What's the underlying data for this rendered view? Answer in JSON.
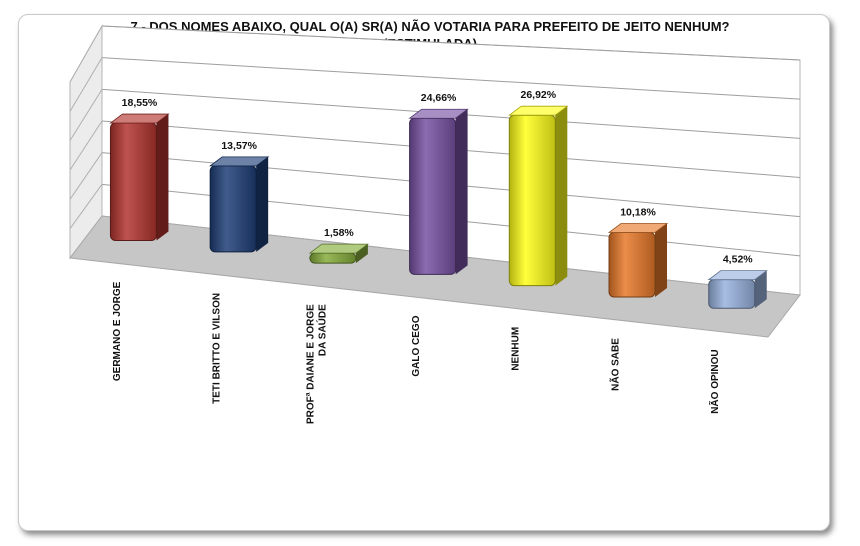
{
  "chart_data": {
    "type": "bar",
    "title_line1": "7 -  DOS NOMES ABAIXO, QUAL O(A) SR(A) NÃO VOTARIA PARA PREFEITO DE JEITO NENHUM?",
    "title_line2": "(ESTIMULADA)",
    "categories": [
      [
        "GERMANO E JORGE"
      ],
      [
        "TETI BRITTO E VILSON"
      ],
      [
        "PROFª DAIANE E JORGE",
        "DA SAÚDE"
      ],
      [
        "GALO CEGO"
      ],
      [
        "NENHUM"
      ],
      [
        "NÃO SABE"
      ],
      [
        "NÃO OPINOU"
      ]
    ],
    "values": [
      18.55,
      13.57,
      1.58,
      24.66,
      26.92,
      10.18,
      4.52
    ],
    "value_labels": [
      "18,55%",
      "13,57%",
      "1,58%",
      "24,66%",
      "26,92%",
      "10,18%",
      "4,52%"
    ],
    "colors": [
      "#b23530",
      "#1f3f78",
      "#86ad3c",
      "#7852a3",
      "#ffff1a",
      "#e8792a",
      "#98b2de"
    ],
    "ylim": [
      0,
      30
    ],
    "style": "3d-column",
    "grid": true,
    "legend": "none"
  }
}
